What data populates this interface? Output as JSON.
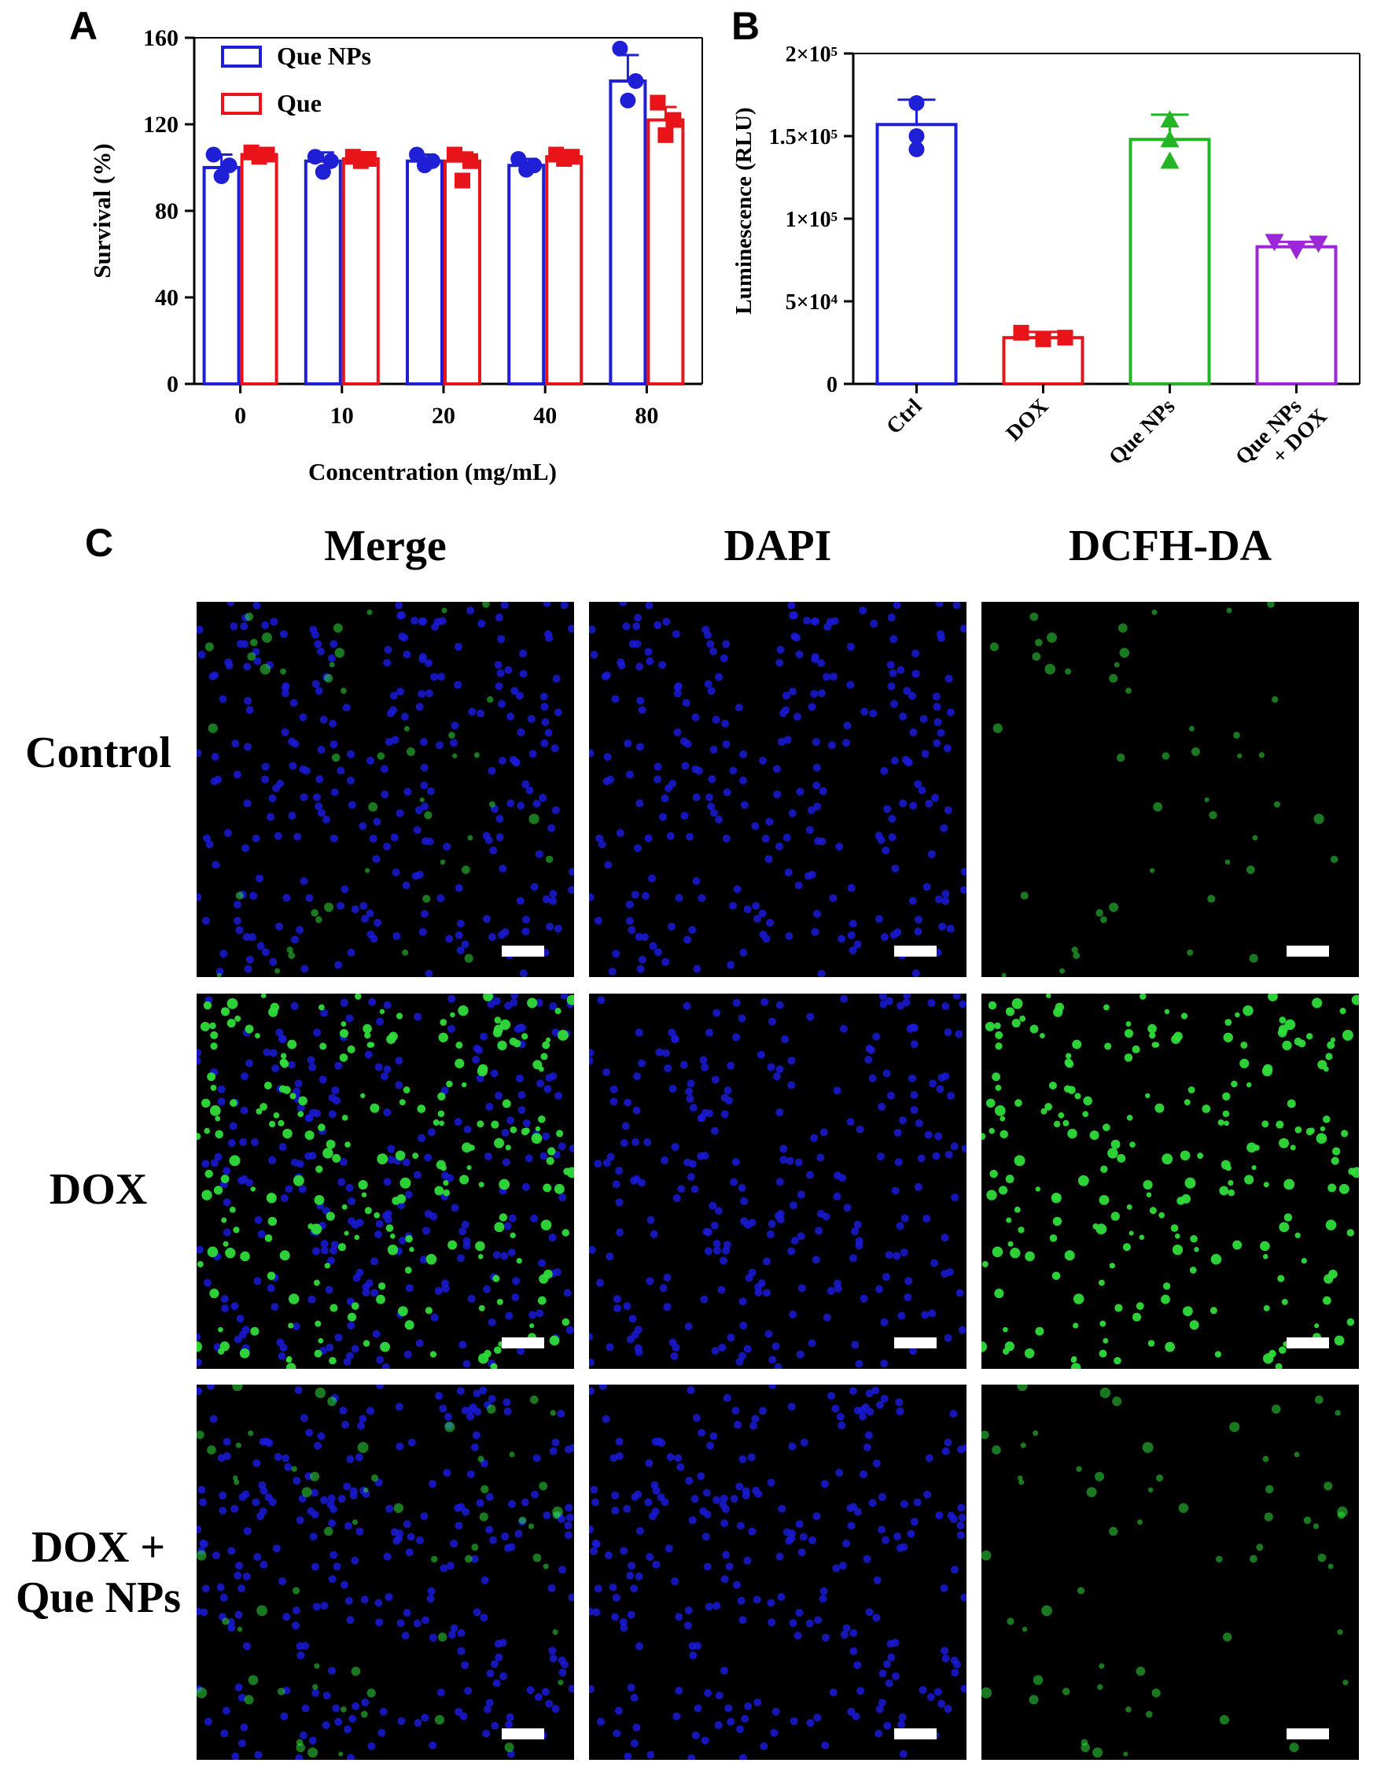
{
  "panels": {
    "a": "A",
    "b": "B",
    "c": "C"
  },
  "chart_data": [
    {
      "type": "bar",
      "panel": "A",
      "categories": [
        "0",
        "10",
        "20",
        "40",
        "80"
      ],
      "series": [
        {
          "name": "Que NPs",
          "color": "#1f1fd6",
          "values": [
            100,
            103,
            103,
            101,
            140
          ],
          "error": [
            6,
            4,
            3,
            3,
            12
          ],
          "points": [
            [
              106,
              96,
              101
            ],
            [
              105,
              98,
              103
            ],
            [
              106,
              101,
              103
            ],
            [
              104,
              99,
              101
            ],
            [
              155,
              131,
              140
            ]
          ]
        },
        {
          "name": "Que",
          "color": "#e8141a",
          "values": [
            106,
            104,
            103,
            105,
            122
          ],
          "error": [
            2,
            2,
            4,
            2,
            6
          ],
          "points": [
            [
              107,
              105,
              106
            ],
            [
              105,
              103,
              104
            ],
            [
              106,
              94,
              103
            ],
            [
              106,
              104,
              105
            ],
            [
              130,
              115,
              122
            ]
          ]
        }
      ],
      "xlabel": "Concentration (mg/mL)",
      "ylabel": "Survival (%)",
      "ylim": [
        0,
        160
      ],
      "yticks": [
        "0",
        "40",
        "80",
        "120",
        "160"
      ],
      "grid": false,
      "legend": "top-left"
    },
    {
      "type": "bar",
      "panel": "B",
      "categories": [
        "Ctrl",
        "DOX",
        "Que NPs",
        "Que NPs\n+ DOX"
      ],
      "values": [
        157000,
        28000,
        148000,
        83000
      ],
      "error": [
        15000,
        3500,
        15000,
        3000
      ],
      "colors": [
        "#1f1fd6",
        "#e8141a",
        "#23b526",
        "#9b27d9"
      ],
      "markers": [
        "circle",
        "square",
        "triangle-up",
        "triangle-down"
      ],
      "points": [
        [
          170000,
          150000,
          142000
        ],
        [
          31000,
          27000,
          28000
        ],
        [
          160000,
          148000,
          135000
        ],
        [
          86000,
          81000,
          85000
        ]
      ],
      "ylabel": "Luminescence (RLU)",
      "ylim": [
        0,
        200000
      ],
      "yticks": [
        "0",
        "5×10⁴",
        "1×10⁵",
        "1.5×10⁵",
        "2×10⁵"
      ],
      "grid": false
    }
  ],
  "microscopy": {
    "columns": [
      "Merge",
      "DAPI",
      "DCFH-DA"
    ],
    "rows": [
      "Control",
      "DOX",
      "DOX +\nQue NPs"
    ]
  }
}
